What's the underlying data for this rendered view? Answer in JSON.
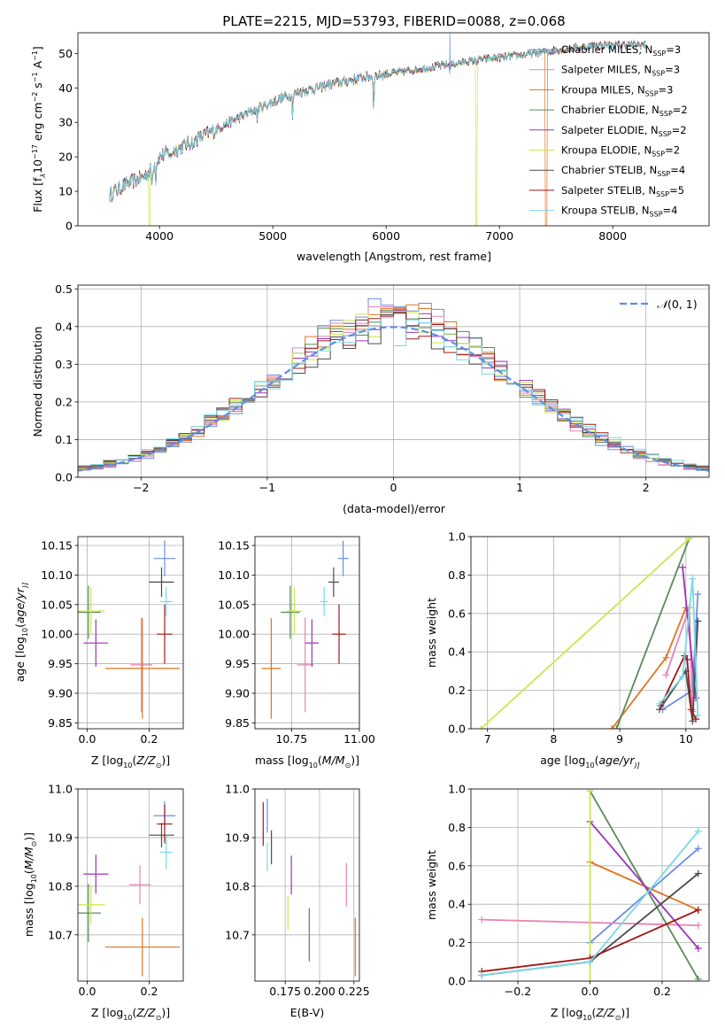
{
  "figure": {
    "title": "PLATE=2215, MJD=53793, FIBERID=0088, z=0.068"
  },
  "colors": {
    "Chabrier MILES": "#6b8ee0",
    "Salpeter MILES": "#e882b6",
    "Kroupa MILES": "#e07420",
    "Chabrier ELODIE": "#5a8a5a",
    "Salpeter ELODIE": "#9b32b8",
    "Kroupa ELODIE": "#c8e84e",
    "Chabrier STELIB": "#4a4a4a",
    "Salpeter STELIB": "#a01818",
    "Kroupa STELIB": "#7ad8e4",
    "normal": "#5b8ee6"
  },
  "chart_data": [
    {
      "id": "spectrum",
      "type": "line",
      "title": "PLATE=2215, MJD=53793, FIBERID=0088, z=0.068",
      "xlabel": "wavelength [Angstrom, rest frame]",
      "ylabel_parts": [
        "Flux [f",
        "λ",
        "10",
        "−17",
        " erg cm",
        "−2",
        " s",
        "−1",
        " A",
        "−1",
        "]"
      ],
      "xlim": [
        3280,
        8850
      ],
      "ylim": [
        0,
        56
      ],
      "xticks": [
        4000,
        5000,
        6000,
        7000,
        8000
      ],
      "yticks": [
        0,
        10,
        20,
        30,
        40,
        50
      ],
      "legend_position": "top-right",
      "legend": [
        {
          "name": "Chabrier MILES",
          "base": "Chabrier MILES, N",
          "sub": "SSP",
          "tail": "=3"
        },
        {
          "name": "Salpeter MILES",
          "base": "Salpeter MILES, N",
          "sub": "SSP",
          "tail": "=3"
        },
        {
          "name": "Kroupa MILES",
          "base": "Kroupa MILES, N",
          "sub": "SSP",
          "tail": "=3"
        },
        {
          "name": "Chabrier ELODIE",
          "base": "Chabrier ELODIE, N",
          "sub": "SSP",
          "tail": "=2"
        },
        {
          "name": "Salpeter ELODIE",
          "base": "Salpeter ELODIE, N",
          "sub": "SSP",
          "tail": "=2"
        },
        {
          "name": "Kroupa ELODIE",
          "base": "Kroupa ELODIE, N",
          "sub": "SSP",
          "tail": "=2"
        },
        {
          "name": "Chabrier STELIB",
          "base": "Chabrier STELIB, N",
          "sub": "SSP",
          "tail": "=4"
        },
        {
          "name": "Salpeter STELIB",
          "base": "Salpeter STELIB, N",
          "sub": "SSP",
          "tail": "=5"
        },
        {
          "name": "Kroupa STELIB",
          "base": "Kroupa STELIB, N",
          "sub": "SSP",
          "tail": "=4"
        }
      ],
      "continuum": [
        [
          3560,
          9
        ],
        [
          3700,
          12
        ],
        [
          3850,
          14
        ],
        [
          3920,
          16
        ],
        [
          4000,
          20
        ],
        [
          4200,
          23
        ],
        [
          4500,
          28
        ],
        [
          4800,
          33
        ],
        [
          5000,
          36
        ],
        [
          5200,
          38.5
        ],
        [
          5500,
          41
        ],
        [
          5800,
          43
        ],
        [
          6000,
          44
        ],
        [
          6300,
          45.5
        ],
        [
          6600,
          47
        ],
        [
          6900,
          48.5
        ],
        [
          7200,
          49.5
        ],
        [
          7500,
          51
        ],
        [
          7900,
          52.5
        ],
        [
          8300,
          52.5
        ]
      ],
      "absorption_lines": [
        [
          3934,
          6
        ],
        [
          3968,
          5
        ],
        [
          4101,
          3
        ],
        [
          4304,
          3
        ],
        [
          4861,
          3
        ],
        [
          5175,
          6
        ],
        [
          5890,
          10
        ],
        [
          6563,
          2
        ]
      ],
      "emission_spike": [
        6563,
        56
      ],
      "dropouts": [
        {
          "series": "Kroupa ELODIE",
          "from": 3905,
          "to": 3915
        },
        {
          "series": "Kroupa ELODIE",
          "from": 6790,
          "to": 6800
        },
        {
          "series": "Kroupa MILES",
          "from": 7405,
          "to": 7420
        }
      ]
    },
    {
      "id": "residuals",
      "type": "line",
      "xlabel": "(data-model)/error",
      "ylabel": "Normed distribution",
      "xlim": [
        -2.5,
        2.5
      ],
      "ylim": [
        0,
        0.51
      ],
      "xticks": [
        -2,
        -1,
        0,
        1,
        2
      ],
      "xtick_labels": [
        "−2",
        "−1",
        "0",
        "1",
        "2"
      ],
      "yticks": [
        0.0,
        0.1,
        0.2,
        0.3,
        0.4,
        0.5
      ],
      "ytick_labels": [
        "0.0",
        "0.1",
        "0.2",
        "0.3",
        "0.4",
        "0.5"
      ],
      "bin_width": 0.1,
      "legend_position": "top-right",
      "legend": [
        {
          "name": "normal",
          "label_pre": "𝒩",
          "label_post": "(0, 1)"
        }
      ],
      "normal_curve": {
        "mean": 0,
        "sigma": 1,
        "style": "dashed"
      }
    },
    {
      "id": "age-vs-Z",
      "type": "scatter",
      "xlabel_parts": [
        "Z [log",
        "10",
        "(",
        "Z/Z",
        "⊙",
        ")]"
      ],
      "ylabel_parts": [
        "age  [log",
        "10",
        "(",
        "age/yr",
        ")]"
      ],
      "xlim": [
        -0.03,
        0.31
      ],
      "ylim": [
        9.84,
        10.165
      ],
      "xticks": [
        0.0,
        0.2
      ],
      "yticks": [
        9.85,
        9.9,
        9.95,
        10.0,
        10.05,
        10.1,
        10.15
      ],
      "points": [
        {
          "series": "Chabrier MILES",
          "x": 0.25,
          "y": 10.128,
          "xerr": 0.035,
          "yerr": 0.03
        },
        {
          "series": "Salpeter MILES",
          "x": 0.175,
          "y": 9.948,
          "xerr": 0.035,
          "yerr": 0.08
        },
        {
          "series": "Kroupa MILES",
          "x": 0.178,
          "y": 9.942,
          "xerr": 0.12,
          "yerr": 0.085
        },
        {
          "series": "Chabrier ELODIE",
          "x": 0.004,
          "y": 10.037,
          "xerr": 0.04,
          "yerr": 0.045
        },
        {
          "series": "Salpeter ELODIE",
          "x": 0.028,
          "y": 9.985,
          "xerr": 0.04,
          "yerr": 0.04
        },
        {
          "series": "Kroupa ELODIE",
          "x": 0.012,
          "y": 10.039,
          "xerr": 0.045,
          "yerr": 0.04
        },
        {
          "series": "Chabrier STELIB",
          "x": 0.24,
          "y": 10.088,
          "xerr": 0.04,
          "yerr": 0.025
        },
        {
          "series": "Salpeter STELIB",
          "x": 0.25,
          "y": 10.0,
          "xerr": 0.025,
          "yerr": 0.05
        },
        {
          "series": "Kroupa STELIB",
          "x": 0.255,
          "y": 10.055,
          "xerr": 0.02,
          "yerr": 0.025
        }
      ]
    },
    {
      "id": "age-vs-mass",
      "type": "scatter",
      "xlabel_parts": [
        "mass [log",
        "10",
        "(",
        "M/M",
        "⊙",
        ")]"
      ],
      "ylabel_parts": [],
      "xlim": [
        10.615,
        11.0
      ],
      "ylim": [
        9.84,
        10.165
      ],
      "xticks": [
        10.75,
        11.0
      ],
      "xtick_labels": [
        "10.75",
        "11.00"
      ],
      "yticks": [
        9.85,
        9.9,
        9.95,
        10.0,
        10.05,
        10.1,
        10.15
      ],
      "points": [
        {
          "series": "Chabrier MILES",
          "x": 10.94,
          "y": 10.128,
          "xerr": 0.02,
          "yerr": 0.03
        },
        {
          "series": "Salpeter MILES",
          "x": 10.8,
          "y": 9.948,
          "xerr": 0.03,
          "yerr": 0.08
        },
        {
          "series": "Kroupa MILES",
          "x": 10.675,
          "y": 9.942,
          "xerr": 0.035,
          "yerr": 0.085
        },
        {
          "series": "Chabrier ELODIE",
          "x": 10.745,
          "y": 10.037,
          "xerr": 0.035,
          "yerr": 0.045
        },
        {
          "series": "Salpeter ELODIE",
          "x": 10.825,
          "y": 9.985,
          "xerr": 0.025,
          "yerr": 0.04
        },
        {
          "series": "Kroupa ELODIE",
          "x": 10.76,
          "y": 10.039,
          "xerr": 0.03,
          "yerr": 0.04
        },
        {
          "series": "Chabrier STELIB",
          "x": 10.905,
          "y": 10.088,
          "xerr": 0.02,
          "yerr": 0.025
        },
        {
          "series": "Salpeter STELIB",
          "x": 10.925,
          "y": 10.0,
          "xerr": 0.025,
          "yerr": 0.05
        },
        {
          "series": "Kroupa STELIB",
          "x": 10.87,
          "y": 10.055,
          "xerr": 0.015,
          "yerr": 0.025
        }
      ]
    },
    {
      "id": "massweight-vs-age",
      "type": "line",
      "xlabel_parts": [
        "age  [log",
        "10",
        "(",
        "age/yr",
        ")]"
      ],
      "ylabel": "mass weight",
      "xlim": [
        6.75,
        10.35
      ],
      "ylim": [
        0,
        1.0
      ],
      "xticks": [
        7,
        8,
        9,
        10
      ],
      "yticks": [
        0.0,
        0.2,
        0.4,
        0.6,
        0.8,
        1.0
      ],
      "series": [
        {
          "name": "Chabrier MILES",
          "points": [
            [
              9.65,
              0.1
            ],
            [
              10.1,
              0.2
            ],
            [
              10.18,
              0.7
            ]
          ]
        },
        {
          "name": "Salpeter MILES",
          "points": [
            [
              9.7,
              0.28
            ],
            [
              10.05,
              0.63
            ],
            [
              10.1,
              0.09
            ]
          ]
        },
        {
          "name": "Kroupa MILES",
          "points": [
            [
              8.88,
              0.0
            ],
            [
              9.7,
              0.37
            ],
            [
              10.0,
              0.63
            ]
          ]
        },
        {
          "name": "Chabrier ELODIE",
          "points": [
            [
              8.95,
              0.0
            ],
            [
              10.05,
              0.99
            ]
          ]
        },
        {
          "name": "Salpeter ELODIE",
          "points": [
            [
              9.95,
              0.84
            ],
            [
              10.15,
              0.16
            ]
          ]
        },
        {
          "name": "Kroupa ELODIE",
          "points": [
            [
              6.9,
              0.0
            ],
            [
              10.05,
              0.99
            ]
          ]
        },
        {
          "name": "Chabrier STELIB",
          "points": [
            [
              9.6,
              0.1
            ],
            [
              10.0,
              0.3
            ],
            [
              10.1,
              0.04
            ],
            [
              10.18,
              0.56
            ]
          ]
        },
        {
          "name": "Salpeter STELIB",
          "points": [
            [
              9.62,
              0.12
            ],
            [
              9.98,
              0.38
            ],
            [
              10.02,
              0.36
            ],
            [
              10.08,
              0.1
            ],
            [
              10.15,
              0.05
            ]
          ]
        },
        {
          "name": "Kroupa STELIB",
          "points": [
            [
              9.6,
              0.13
            ],
            [
              9.95,
              0.27
            ],
            [
              10.1,
              0.78
            ],
            [
              10.18,
              0.07
            ]
          ]
        }
      ]
    },
    {
      "id": "mass-vs-Z",
      "type": "scatter",
      "xlabel_parts": [
        "Z [log",
        "10",
        "(",
        "Z/Z",
        "⊙",
        ")]"
      ],
      "ylabel_parts": [
        "mass [log",
        "10",
        "(",
        "M/M",
        "⊙",
        ")]"
      ],
      "xlim": [
        -0.03,
        0.31
      ],
      "ylim": [
        10.605,
        11.0
      ],
      "xticks": [
        0.0,
        0.2
      ],
      "yticks": [
        10.7,
        10.8,
        10.9,
        11.0
      ],
      "points": [
        {
          "series": "Chabrier MILES",
          "x": 0.25,
          "y": 10.945,
          "xerr": 0.035,
          "yerr": 0.03
        },
        {
          "series": "Salpeter MILES",
          "x": 0.17,
          "y": 10.803,
          "xerr": 0.035,
          "yerr": 0.04
        },
        {
          "series": "Kroupa MILES",
          "x": 0.178,
          "y": 10.675,
          "xerr": 0.12,
          "yerr": 0.06
        },
        {
          "series": "Chabrier ELODIE",
          "x": 0.004,
          "y": 10.745,
          "xerr": 0.04,
          "yerr": 0.06
        },
        {
          "series": "Salpeter ELODIE",
          "x": 0.028,
          "y": 10.825,
          "xerr": 0.04,
          "yerr": 0.04
        },
        {
          "series": "Kroupa ELODIE",
          "x": 0.012,
          "y": 10.762,
          "xerr": 0.045,
          "yerr": 0.04
        },
        {
          "series": "Chabrier STELIB",
          "x": 0.24,
          "y": 10.905,
          "xerr": 0.04,
          "yerr": 0.025
        },
        {
          "series": "Salpeter STELIB",
          "x": 0.25,
          "y": 10.928,
          "xerr": 0.025,
          "yerr": 0.04
        },
        {
          "series": "Kroupa STELIB",
          "x": 0.255,
          "y": 10.87,
          "xerr": 0.02,
          "yerr": 0.035
        }
      ]
    },
    {
      "id": "mass-vs-EBV",
      "type": "scatter",
      "xlabel": "E(B-V)",
      "ylabel_parts": [],
      "xlim": [
        0.153,
        0.229
      ],
      "ylim": [
        10.605,
        11.0
      ],
      "xticks": [
        0.175,
        0.2,
        0.225
      ],
      "xtick_labels": [
        "0.175",
        "0.200",
        "0.225"
      ],
      "yticks": [
        10.7,
        10.8,
        10.9,
        11.0
      ],
      "points": [
        {
          "series": "Chabrier MILES",
          "x": 0.162,
          "y": 10.945,
          "xerr": 0.0,
          "yerr": 0.035
        },
        {
          "series": "Salpeter MILES",
          "x": 0.2195,
          "y": 10.803,
          "xerr": 0.0,
          "yerr": 0.045
        },
        {
          "series": "Kroupa MILES",
          "x": 0.226,
          "y": 10.675,
          "xerr": 0.0,
          "yerr": 0.06
        },
        {
          "series": "Chabrier ELODIE",
          "x": 0.1925,
          "y": 10.7,
          "xerr": 0.0,
          "yerr": 0.055
        },
        {
          "series": "Salpeter ELODIE",
          "x": 0.1795,
          "y": 10.823,
          "xerr": 0.0,
          "yerr": 0.04
        },
        {
          "series": "Kroupa ELODIE",
          "x": 0.177,
          "y": 10.745,
          "xerr": 0.0,
          "yerr": 0.035
        },
        {
          "series": "Chabrier STELIB",
          "x": 0.165,
          "y": 10.88,
          "xerr": 0.0,
          "yerr": 0.035
        },
        {
          "series": "Salpeter STELIB",
          "x": 0.159,
          "y": 10.928,
          "xerr": 0.0,
          "yerr": 0.045
        },
        {
          "series": "Kroupa STELIB",
          "x": 0.162,
          "y": 10.86,
          "xerr": 0.0,
          "yerr": 0.03
        }
      ]
    },
    {
      "id": "massweight-vs-Z",
      "type": "line",
      "xlabel_parts": [
        "Z [log",
        "10",
        "(",
        "Z/Z",
        "⊙",
        ")]"
      ],
      "ylabel": "mass weight",
      "xlim": [
        -0.33,
        0.33
      ],
      "ylim": [
        0,
        1.0
      ],
      "xticks": [
        -0.2,
        0.0,
        0.2
      ],
      "xtick_labels": [
        "−0.2",
        "0.0",
        "0.2"
      ],
      "yticks": [
        0.0,
        0.2,
        0.4,
        0.6,
        0.8,
        1.0
      ],
      "series": [
        {
          "name": "Chabrier MILES",
          "points": [
            [
              0.0,
              0.2
            ],
            [
              0.3,
              0.69
            ]
          ]
        },
        {
          "name": "Salpeter MILES",
          "points": [
            [
              -0.3,
              0.32
            ],
            [
              0.3,
              0.29
            ]
          ]
        },
        {
          "name": "Kroupa MILES",
          "points": [
            [
              0.0,
              0.62
            ],
            [
              0.3,
              0.37
            ]
          ]
        },
        {
          "name": "Chabrier ELODIE",
          "points": [
            [
              0.0,
              0.99
            ],
            [
              0.3,
              0.01
            ]
          ]
        },
        {
          "name": "Salpeter ELODIE",
          "points": [
            [
              0.0,
              0.83
            ],
            [
              0.3,
              0.17
            ]
          ]
        },
        {
          "name": "Kroupa ELODIE",
          "points": [
            [
              0.0,
              0.0
            ],
            [
              0.0,
              0.99
            ]
          ]
        },
        {
          "name": "Chabrier STELIB",
          "points": [
            [
              -0.3,
              0.03
            ],
            [
              0.0,
              0.1
            ],
            [
              0.3,
              0.56
            ]
          ]
        },
        {
          "name": "Salpeter STELIB",
          "points": [
            [
              -0.3,
              0.05
            ],
            [
              0.0,
              0.12
            ],
            [
              0.3,
              0.37
            ]
          ]
        },
        {
          "name": "Kroupa STELIB",
          "points": [
            [
              -0.3,
              0.03
            ],
            [
              0.0,
              0.1
            ],
            [
              0.3,
              0.78
            ]
          ]
        }
      ]
    }
  ]
}
